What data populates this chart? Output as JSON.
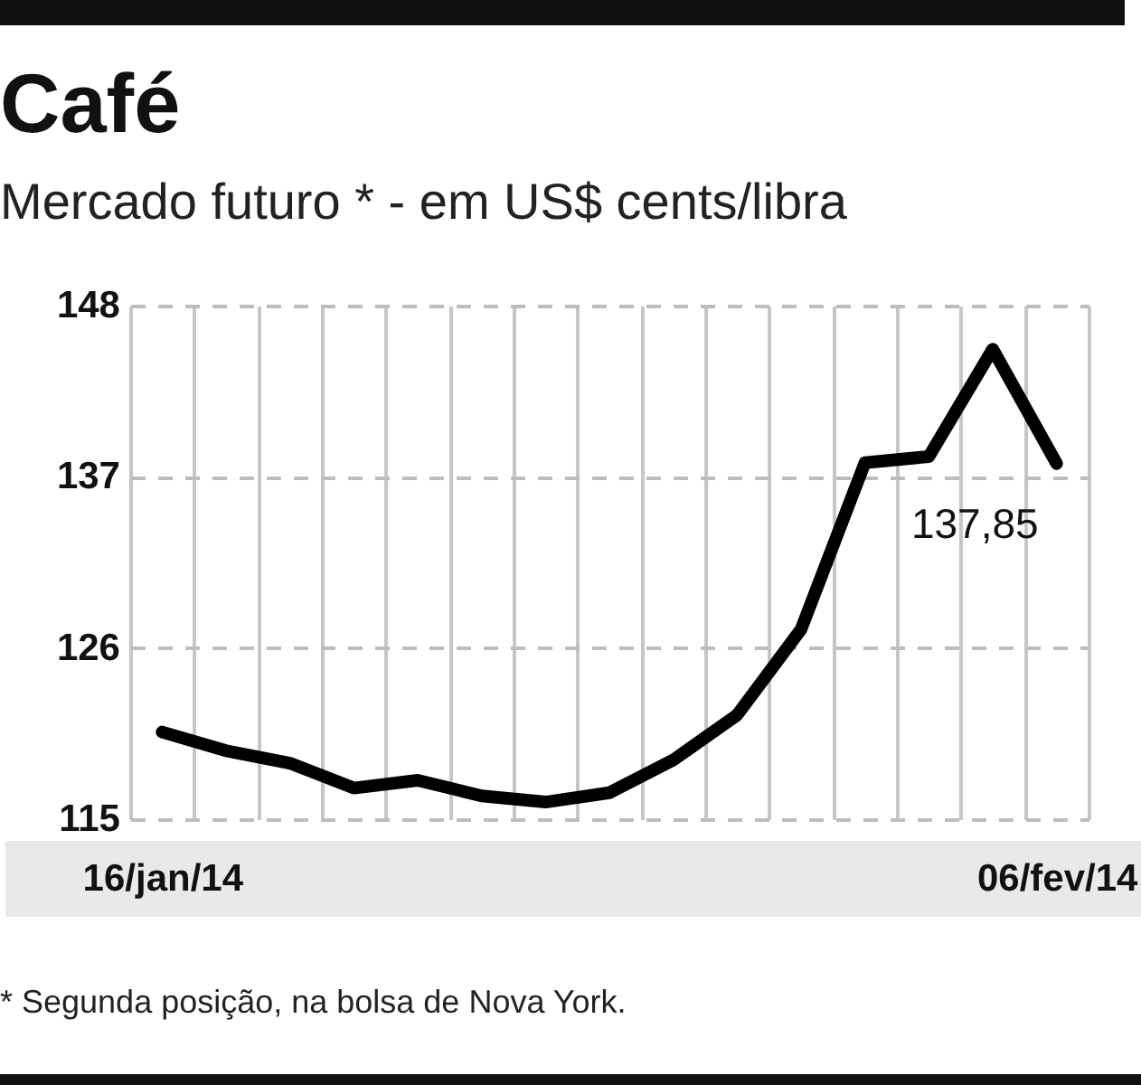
{
  "chart_data": {
    "type": "line",
    "title": "Café",
    "subtitle": "Mercado futuro * - em US$ cents/libra",
    "annotations": [
      "* Segunda posição, na bolsa de Nova York."
    ],
    "categories": [
      "16/jan/14",
      null,
      null,
      null,
      null,
      null,
      null,
      null,
      null,
      null,
      null,
      null,
      null,
      null,
      "06/fev/14"
    ],
    "values": [
      120.6,
      119.4,
      118.6,
      117.0,
      117.5,
      116.5,
      116.1,
      116.7,
      118.8,
      121.7,
      127.2,
      137.9,
      138.3,
      145.2,
      137.85
    ],
    "value_labels": [
      null,
      null,
      null,
      null,
      null,
      null,
      null,
      null,
      null,
      null,
      null,
      null,
      null,
      null,
      "137,85"
    ],
    "color": "#000000",
    "ylim": [
      115,
      148
    ],
    "yticks": [
      115,
      126,
      137,
      148
    ],
    "grid": true,
    "marker": "none",
    "line_style": "solid"
  }
}
